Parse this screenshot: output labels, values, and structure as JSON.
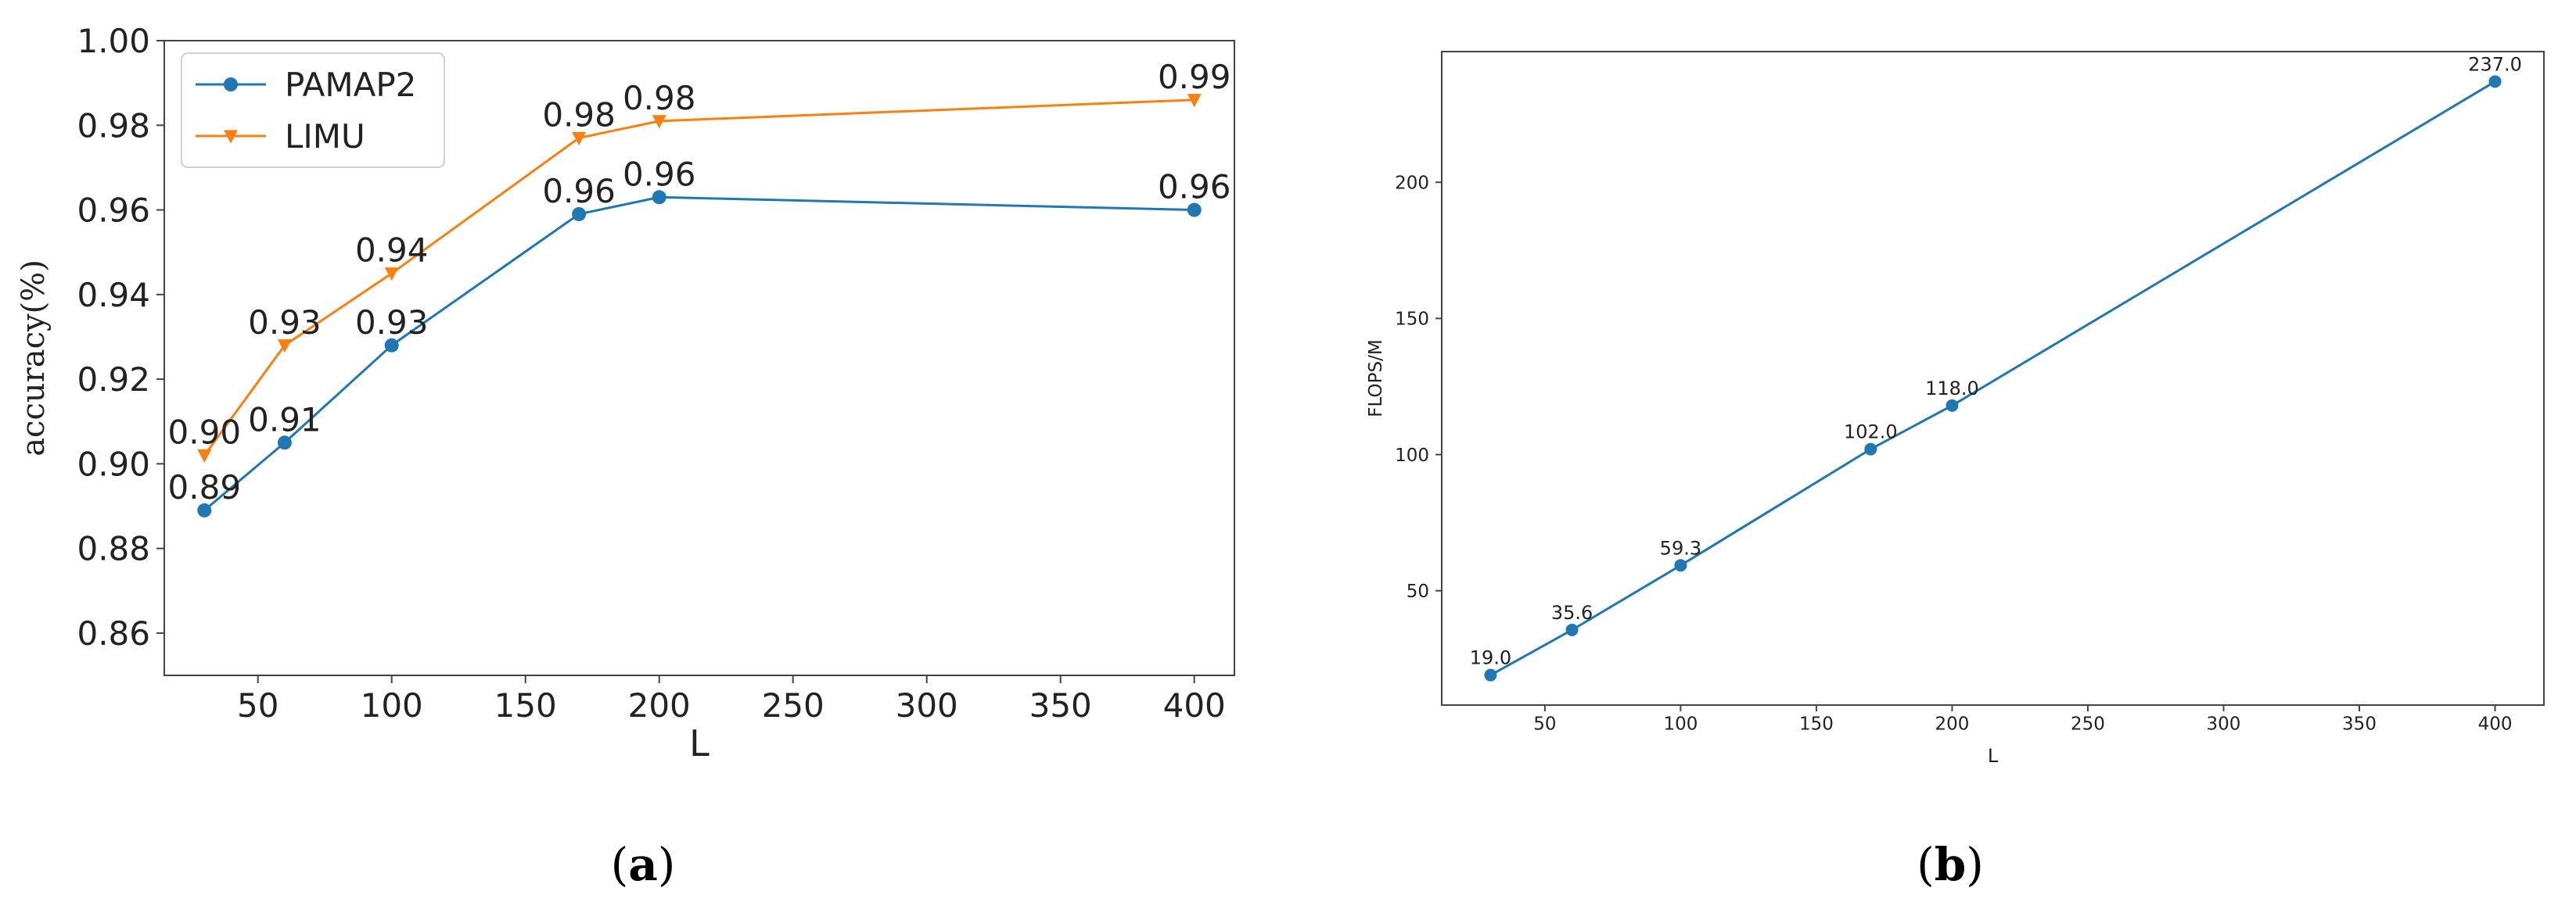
{
  "panels": [
    {
      "label_open": "(",
      "label_letter": "a",
      "label_close": ")"
    },
    {
      "label_open": "(",
      "label_letter": "b",
      "label_close": ")"
    }
  ],
  "chart_data": [
    {
      "type": "line",
      "xlabel": "L",
      "ylabel": "accuracy(%)",
      "xlim": [
        15,
        415
      ],
      "ylim": [
        0.85,
        1.0
      ],
      "xticks": [
        50,
        100,
        150,
        200,
        250,
        300,
        350,
        400
      ],
      "yticks": [
        0.86,
        0.88,
        0.9,
        0.92,
        0.94,
        0.96,
        0.98,
        1.0
      ],
      "ytick_labels": [
        "0.86",
        "0.88",
        "0.90",
        "0.92",
        "0.94",
        "0.96",
        "0.98",
        "1.00"
      ],
      "grid": false,
      "legend": "upper-left",
      "series": [
        {
          "name": "PAMAP2",
          "color": "#1f77b4",
          "marker": "circle",
          "x": [
            30,
            60,
            100,
            170,
            200,
            400
          ],
          "values": [
            0.889,
            0.905,
            0.928,
            0.959,
            0.963,
            0.96
          ],
          "labels": [
            "0.89",
            "0.91",
            "0.93",
            "0.96",
            "0.96",
            "0.96"
          ]
        },
        {
          "name": "LIMU",
          "color": "#ff7f0e",
          "marker": "triangle-down",
          "x": [
            30,
            60,
            100,
            170,
            200,
            400
          ],
          "values": [
            0.902,
            0.928,
            0.945,
            0.977,
            0.981,
            0.986
          ],
          "labels": [
            "0.90",
            "0.93",
            "0.94",
            "0.98",
            "0.98",
            "0.99"
          ]
        }
      ]
    },
    {
      "type": "line",
      "xlabel": "L",
      "ylabel": "FLOPS/M",
      "xlim": [
        12,
        418
      ],
      "ylim": [
        8,
        248
      ],
      "xticks": [
        50,
        100,
        150,
        200,
        250,
        300,
        350,
        400
      ],
      "yticks": [
        50,
        100,
        150,
        200
      ],
      "ytick_labels": [
        "50",
        "100",
        "150",
        "200"
      ],
      "grid": false,
      "series": [
        {
          "color": "#1f77b4",
          "marker": "circle",
          "x": [
            30,
            60,
            100,
            170,
            200,
            400
          ],
          "values": [
            19.0,
            35.6,
            59.3,
            102.0,
            118.0,
            237.0
          ],
          "labels": [
            "19.0",
            "35.6",
            "59.3",
            "102.0",
            "118.0",
            "237.0"
          ]
        }
      ]
    }
  ]
}
